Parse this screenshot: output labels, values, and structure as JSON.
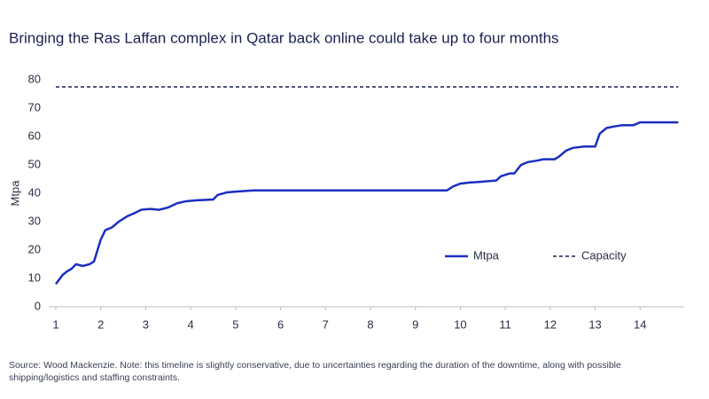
{
  "chart_data": {
    "type": "line",
    "title": "Bringing the Ras Laffan complex in Qatar back online could take up to four months",
    "ylabel": "Mtpa",
    "source": [
      "Source: Wood Mackenzie. Note: this timeline is slightly conservative, due to uncertainties regarding the duration of the downtime, along with possible",
      "shipping/logistics and staffing constraints."
    ],
    "xlim": [
      1,
      15
    ],
    "ylim": [
      0,
      80
    ],
    "xticks": [
      1,
      2,
      3,
      4,
      5,
      6,
      7,
      8,
      9,
      10,
      11,
      12,
      13,
      14
    ],
    "yticks": [
      0,
      10,
      20,
      30,
      40,
      50,
      60,
      70,
      80
    ],
    "grid": false,
    "series": [
      {
        "name": "Mtpa",
        "color": "#1a2fc0",
        "dash": false,
        "x": [
          1,
          1.15,
          1.25,
          1.35,
          1.45,
          1.6,
          1.75,
          1.85,
          2.0,
          2.1,
          2.25,
          2.4,
          2.6,
          2.75,
          2.9,
          3.1,
          3.3,
          3.5,
          3.7,
          3.9,
          4.1,
          4.5,
          4.6,
          4.8,
          5.0,
          5.4,
          9.7,
          9.85,
          10.0,
          10.2,
          10.4,
          10.8,
          10.9,
          11.1,
          11.2,
          11.35,
          11.5,
          11.7,
          11.85,
          12.1,
          12.2,
          12.35,
          12.5,
          12.75,
          13.0,
          13.1,
          13.25,
          13.4,
          13.6,
          13.85,
          14.0,
          14.85
        ],
        "values": [
          8,
          11.2,
          12.5,
          13.4,
          15,
          14.4,
          15,
          16,
          23.7,
          27,
          28,
          30,
          32,
          33,
          34.2,
          34.5,
          34.2,
          35,
          36.5,
          37.2,
          37.5,
          37.8,
          39.4,
          40.3,
          40.6,
          41,
          41,
          42.5,
          43.4,
          43.8,
          44,
          44.5,
          46,
          47,
          47,
          50,
          51,
          51.5,
          52,
          52,
          53,
          55,
          56,
          56.5,
          56.5,
          61,
          63,
          63.5,
          64,
          64,
          65,
          65
        ]
      },
      {
        "name": "Capacity",
        "color": "#1b2050",
        "dash": true,
        "x": [
          1,
          14.85
        ],
        "values": [
          77.5,
          77.5
        ]
      }
    ]
  }
}
